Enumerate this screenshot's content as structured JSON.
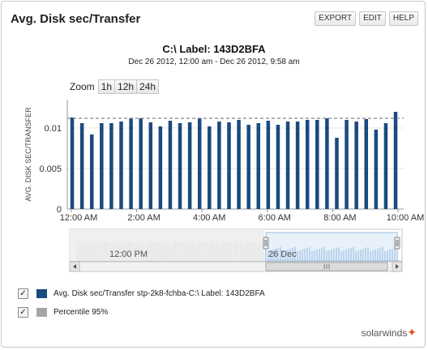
{
  "header": {
    "title": "Avg. Disk sec/Transfer",
    "buttons": [
      "EXPORT",
      "EDIT",
      "HELP"
    ]
  },
  "chart": {
    "title": "C:\\ Label: 143D2BFA",
    "subtitle": "Dec 26 2012, 12:00 am - Dec 26 2012, 9:58 am",
    "zoom_label": "Zoom",
    "zoom_options": [
      "1h",
      "12h",
      "24h"
    ]
  },
  "navigator": {
    "labels": [
      "12:00 PM",
      "26 Dec"
    ]
  },
  "legend": [
    {
      "label": "Avg. Disk sec/Transfer stp-2k8-fchba-C:\\ Label: 143D2BFA",
      "checked": true,
      "color": "#1a4a7e"
    },
    {
      "label": "Percentile 95%",
      "checked": true,
      "color": "#a5a5a5"
    }
  ],
  "logo": {
    "text": "solarwinds"
  },
  "colors": {
    "bar": "#1a4a7e",
    "percentile": "#888888",
    "nav_fill": "#bcd6ee"
  },
  "chart_data": {
    "type": "bar",
    "ylabel": "AVG. DISK SEC/TRANSFER",
    "ylim": [
      0,
      0.0135
    ],
    "yticks": [
      0,
      0.005,
      0.01
    ],
    "ytick_labels": [
      "0",
      "0.005",
      "0.01"
    ],
    "xlim": [
      0,
      10
    ],
    "xticks": [
      0,
      2,
      4,
      6,
      8,
      10
    ],
    "xtick_labels": [
      "12:00 AM",
      "2:00 AM",
      "4:00 AM",
      "6:00 AM",
      "8:00 AM",
      "10:00 AM"
    ],
    "percentile_95": 0.0112,
    "x": [
      0.02,
      0.32,
      0.62,
      0.92,
      1.22,
      1.52,
      1.82,
      2.12,
      2.42,
      2.72,
      3.02,
      3.32,
      3.62,
      3.92,
      4.22,
      4.52,
      4.82,
      5.12,
      5.42,
      5.72,
      6.02,
      6.32,
      6.62,
      6.92,
      7.22,
      7.52,
      7.82,
      8.12,
      8.42,
      8.72,
      9.02,
      9.32,
      9.62,
      9.92
    ],
    "values": [
      0.0113,
      0.0106,
      0.0092,
      0.0106,
      0.0106,
      0.0108,
      0.0112,
      0.0112,
      0.0107,
      0.0102,
      0.0109,
      0.0106,
      0.0107,
      0.0112,
      0.0102,
      0.0108,
      0.0107,
      0.011,
      0.0104,
      0.0106,
      0.0109,
      0.0104,
      0.0108,
      0.0108,
      0.011,
      0.011,
      0.0112,
      0.0088,
      0.011,
      0.0108,
      0.0111,
      0.0098,
      0.0106,
      0.012
    ]
  }
}
